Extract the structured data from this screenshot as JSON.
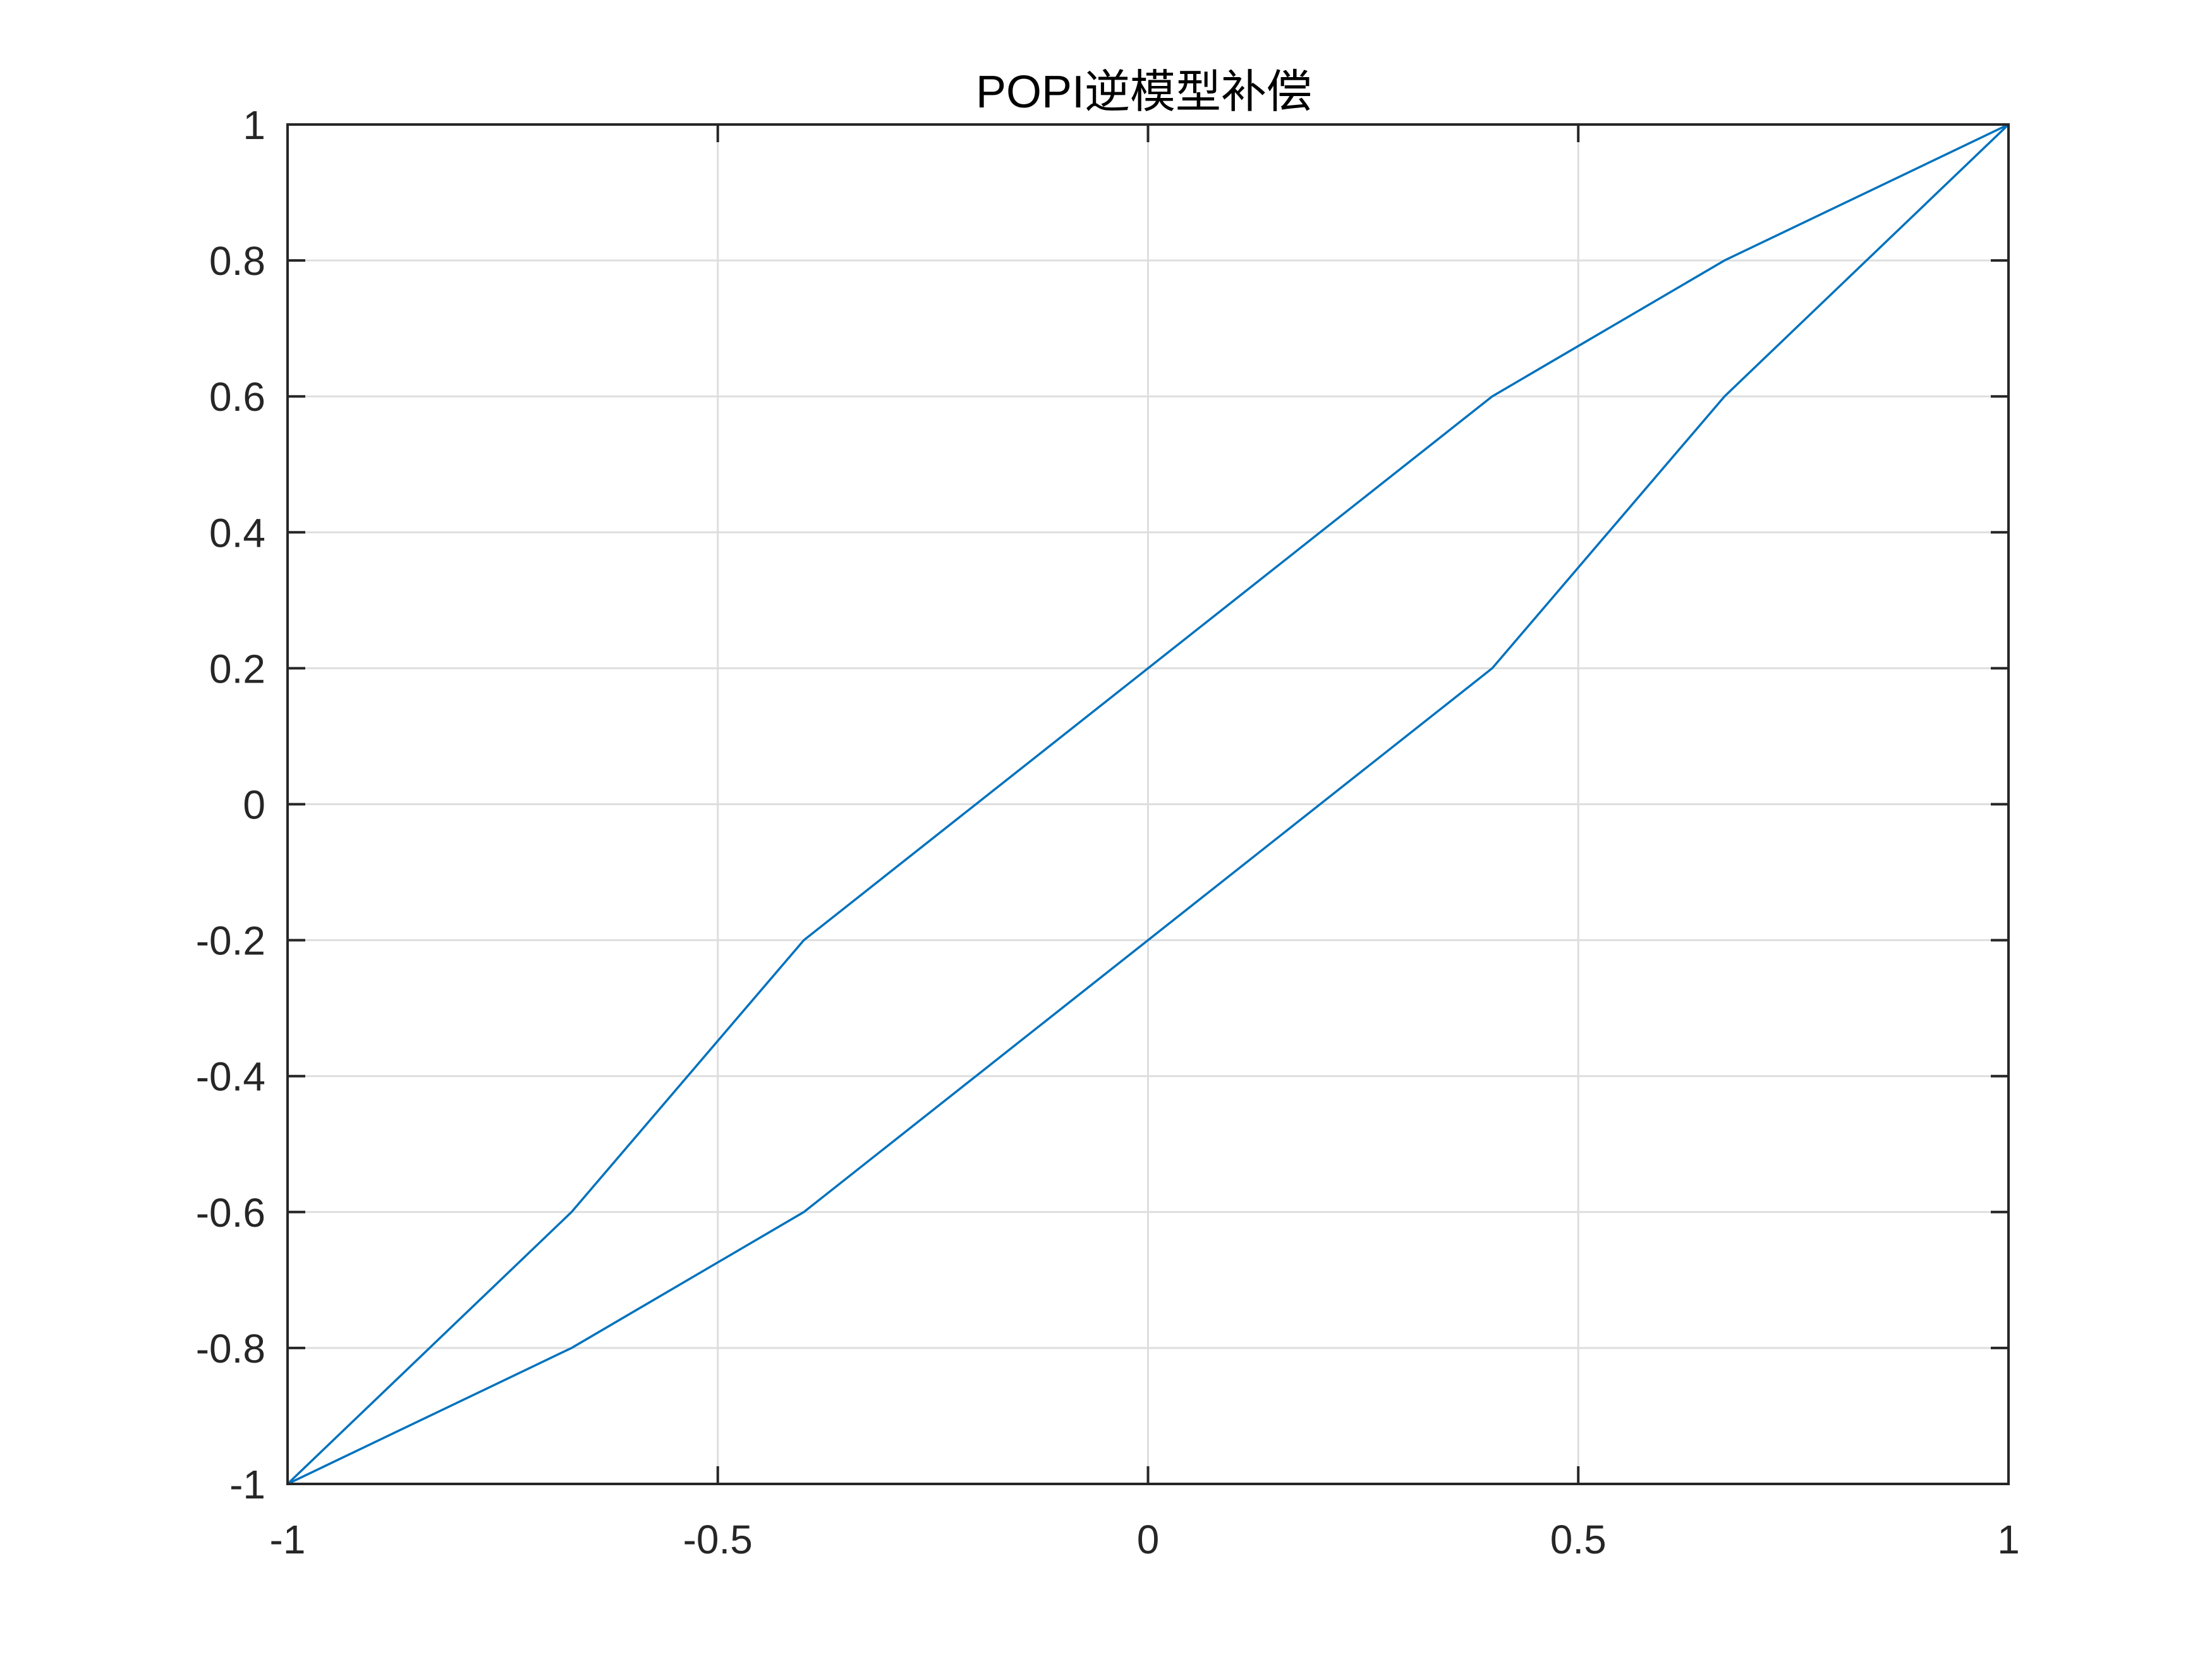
{
  "chart_data": {
    "type": "line",
    "title": "POPI逆模型补偿",
    "xlabel": "",
    "ylabel": "",
    "xlim": [
      -1,
      1
    ],
    "ylim": [
      -1,
      1
    ],
    "xticks": [
      -1,
      -0.5,
      0,
      0.5,
      1
    ],
    "xtick_labels": [
      "-1",
      "-0.5",
      "0",
      "0.5",
      "1"
    ],
    "yticks": [
      -1,
      -0.8,
      -0.6,
      -0.4,
      -0.2,
      0,
      0.2,
      0.4,
      0.6,
      0.8,
      1
    ],
    "ytick_labels": [
      "-1",
      "-0.8",
      "-0.6",
      "-0.4",
      "-0.2",
      "0",
      "0.2",
      "0.4",
      "0.6",
      "0.8",
      "1"
    ],
    "grid": true,
    "series": [
      {
        "color": "#0072BD",
        "x": [
          -1,
          -0.67,
          -0.4,
          -0.2,
          0,
          0.2,
          0.4,
          0.67,
          1
        ],
        "y": [
          -1,
          -0.8,
          -0.6,
          -0.4,
          -0.2,
          0,
          0.2,
          0.6,
          1
        ]
      },
      {
        "color": "#0072BD",
        "x": [
          -1,
          -0.67,
          -0.4,
          -0.2,
          0,
          0.2,
          0.4,
          0.67,
          1
        ],
        "y": [
          -1,
          -0.6,
          -0.2,
          0,
          0.2,
          0.4,
          0.6,
          0.8,
          1
        ]
      }
    ]
  }
}
